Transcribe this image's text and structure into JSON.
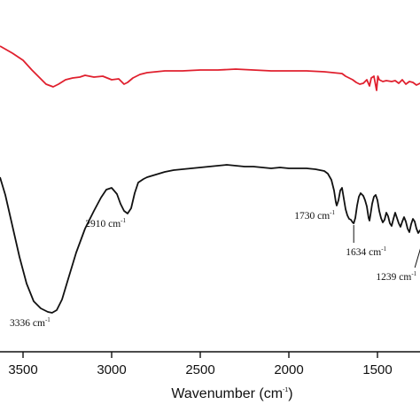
{
  "chart_data": {
    "type": "line",
    "title": "",
    "xlabel": "Wavenumber (cm",
    "xlabel_sup": "-1",
    "xlabel_close": ")",
    "ylabel": "",
    "x_reversed": true,
    "xlim": [
      3630,
      1160
    ],
    "x_ticks": [
      3500,
      3000,
      2500,
      2000,
      1500
    ],
    "x_tick_labels": [
      "3500",
      "3000",
      "2500",
      "2000",
      "1500"
    ],
    "grid": false,
    "y_ticks_shown": false,
    "series": [
      {
        "color": "#e0202e",
        "points": [
          [
            3630,
            52
          ],
          [
            3560,
            60
          ],
          [
            3500,
            68
          ],
          [
            3450,
            79
          ],
          [
            3400,
            89
          ],
          [
            3370,
            95
          ],
          [
            3330,
            98
          ],
          [
            3300,
            95
          ],
          [
            3260,
            90
          ],
          [
            3220,
            88
          ],
          [
            3180,
            87
          ],
          [
            3150,
            85
          ],
          [
            3100,
            87
          ],
          [
            3050,
            86
          ],
          [
            3000,
            90
          ],
          [
            2960,
            89
          ],
          [
            2930,
            95
          ],
          [
            2910,
            93
          ],
          [
            2880,
            88
          ],
          [
            2840,
            84
          ],
          [
            2800,
            82
          ],
          [
            2750,
            81
          ],
          [
            2700,
            80
          ],
          [
            2600,
            80
          ],
          [
            2500,
            79
          ],
          [
            2400,
            79
          ],
          [
            2300,
            78
          ],
          [
            2200,
            79
          ],
          [
            2100,
            80
          ],
          [
            2000,
            80
          ],
          [
            1900,
            80
          ],
          [
            1800,
            81
          ],
          [
            1750,
            82
          ],
          [
            1700,
            83
          ],
          [
            1680,
            86
          ],
          [
            1660,
            88
          ],
          [
            1640,
            90
          ],
          [
            1620,
            93
          ],
          [
            1600,
            95
          ],
          [
            1580,
            94
          ],
          [
            1560,
            90
          ],
          [
            1545,
            97
          ],
          [
            1535,
            88
          ],
          [
            1520,
            86
          ],
          [
            1505,
            102
          ],
          [
            1498,
            86
          ],
          [
            1490,
            90
          ],
          [
            1470,
            92
          ],
          [
            1450,
            91
          ],
          [
            1420,
            92
          ],
          [
            1400,
            91
          ],
          [
            1380,
            94
          ],
          [
            1360,
            90
          ],
          [
            1340,
            95
          ],
          [
            1320,
            92
          ],
          [
            1300,
            93
          ],
          [
            1280,
            96
          ],
          [
            1260,
            94
          ],
          [
            1240,
            96
          ],
          [
            1225,
            104
          ],
          [
            1215,
            93
          ],
          [
            1200,
            95
          ],
          [
            1180,
            92
          ],
          [
            1160,
            94
          ]
        ]
      },
      {
        "color": "#111111",
        "points": [
          [
            3630,
            200
          ],
          [
            3600,
            220
          ],
          [
            3560,
            255
          ],
          [
            3520,
            290
          ],
          [
            3480,
            320
          ],
          [
            3440,
            340
          ],
          [
            3400,
            348
          ],
          [
            3360,
            352
          ],
          [
            3336,
            353
          ],
          [
            3310,
            350
          ],
          [
            3280,
            338
          ],
          [
            3250,
            318
          ],
          [
            3200,
            285
          ],
          [
            3150,
            258
          ],
          [
            3100,
            238
          ],
          [
            3060,
            223
          ],
          [
            3030,
            214
          ],
          [
            3000,
            212
          ],
          [
            2970,
            219
          ],
          [
            2950,
            230
          ],
          [
            2930,
            238
          ],
          [
            2910,
            241
          ],
          [
            2890,
            235
          ],
          [
            2870,
            218
          ],
          [
            2850,
            206
          ],
          [
            2820,
            202
          ],
          [
            2800,
            200
          ],
          [
            2750,
            197
          ],
          [
            2700,
            194
          ],
          [
            2650,
            192
          ],
          [
            2600,
            191
          ],
          [
            2550,
            190
          ],
          [
            2500,
            189
          ],
          [
            2450,
            188
          ],
          [
            2400,
            187
          ],
          [
            2350,
            186
          ],
          [
            2300,
            187
          ],
          [
            2250,
            188
          ],
          [
            2200,
            188
          ],
          [
            2150,
            189
          ],
          [
            2100,
            190
          ],
          [
            2050,
            189
          ],
          [
            2000,
            190
          ],
          [
            1950,
            190
          ],
          [
            1900,
            190
          ],
          [
            1850,
            191
          ],
          [
            1800,
            193
          ],
          [
            1780,
            196
          ],
          [
            1760,
            203
          ],
          [
            1745,
            215
          ],
          [
            1735,
            228
          ],
          [
            1730,
            232
          ],
          [
            1720,
            226
          ],
          [
            1710,
            215
          ],
          [
            1700,
            212
          ],
          [
            1690,
            224
          ],
          [
            1680,
            236
          ],
          [
            1670,
            243
          ],
          [
            1660,
            247
          ],
          [
            1650,
            248
          ],
          [
            1640,
            251
          ],
          [
            1634,
            252
          ],
          [
            1625,
            246
          ],
          [
            1615,
            232
          ],
          [
            1605,
            222
          ],
          [
            1595,
            218
          ],
          [
            1580,
            221
          ],
          [
            1570,
            226
          ],
          [
            1560,
            233
          ],
          [
            1550,
            246
          ],
          [
            1545,
            249
          ],
          [
            1540,
            243
          ],
          [
            1530,
            230
          ],
          [
            1520,
            222
          ],
          [
            1510,
            220
          ],
          [
            1500,
            226
          ],
          [
            1490,
            238
          ],
          [
            1480,
            246
          ],
          [
            1470,
            251
          ],
          [
            1460,
            248
          ],
          [
            1450,
            240
          ],
          [
            1440,
            244
          ],
          [
            1430,
            252
          ],
          [
            1420,
            255
          ],
          [
            1410,
            247
          ],
          [
            1400,
            240
          ],
          [
            1390,
            246
          ],
          [
            1380,
            252
          ],
          [
            1370,
            256
          ],
          [
            1360,
            250
          ],
          [
            1350,
            245
          ],
          [
            1340,
            250
          ],
          [
            1330,
            258
          ],
          [
            1320,
            262
          ],
          [
            1310,
            253
          ],
          [
            1300,
            247
          ],
          [
            1290,
            250
          ],
          [
            1280,
            258
          ],
          [
            1270,
            263
          ],
          [
            1260,
            260
          ],
          [
            1250,
            258
          ],
          [
            1245,
            262
          ],
          [
            1239,
            266
          ],
          [
            1230,
            262
          ],
          [
            1220,
            252
          ],
          [
            1210,
            245
          ],
          [
            1200,
            246
          ],
          [
            1190,
            249
          ],
          [
            1180,
            244
          ],
          [
            1170,
            241
          ],
          [
            1160,
            242
          ]
        ]
      }
    ],
    "annotations": [
      {
        "text": "3336 cm",
        "sup": "-1",
        "x": 3336,
        "y": 353,
        "placement": "below-left"
      },
      {
        "text": "2910 cm",
        "sup": "-1",
        "x": 2910,
        "y": 241,
        "placement": "below-left"
      },
      {
        "text": "1730 cm",
        "sup": "-1",
        "x": 1730,
        "y": 232,
        "placement": "below-left"
      },
      {
        "text": "1634 cm",
        "sup": "-1",
        "x": 1634,
        "y": 252,
        "placement": "leader-below"
      },
      {
        "text": "1239 cm",
        "sup": "-1",
        "x": 1239,
        "y": 266,
        "placement": "leader-below-left"
      }
    ]
  }
}
